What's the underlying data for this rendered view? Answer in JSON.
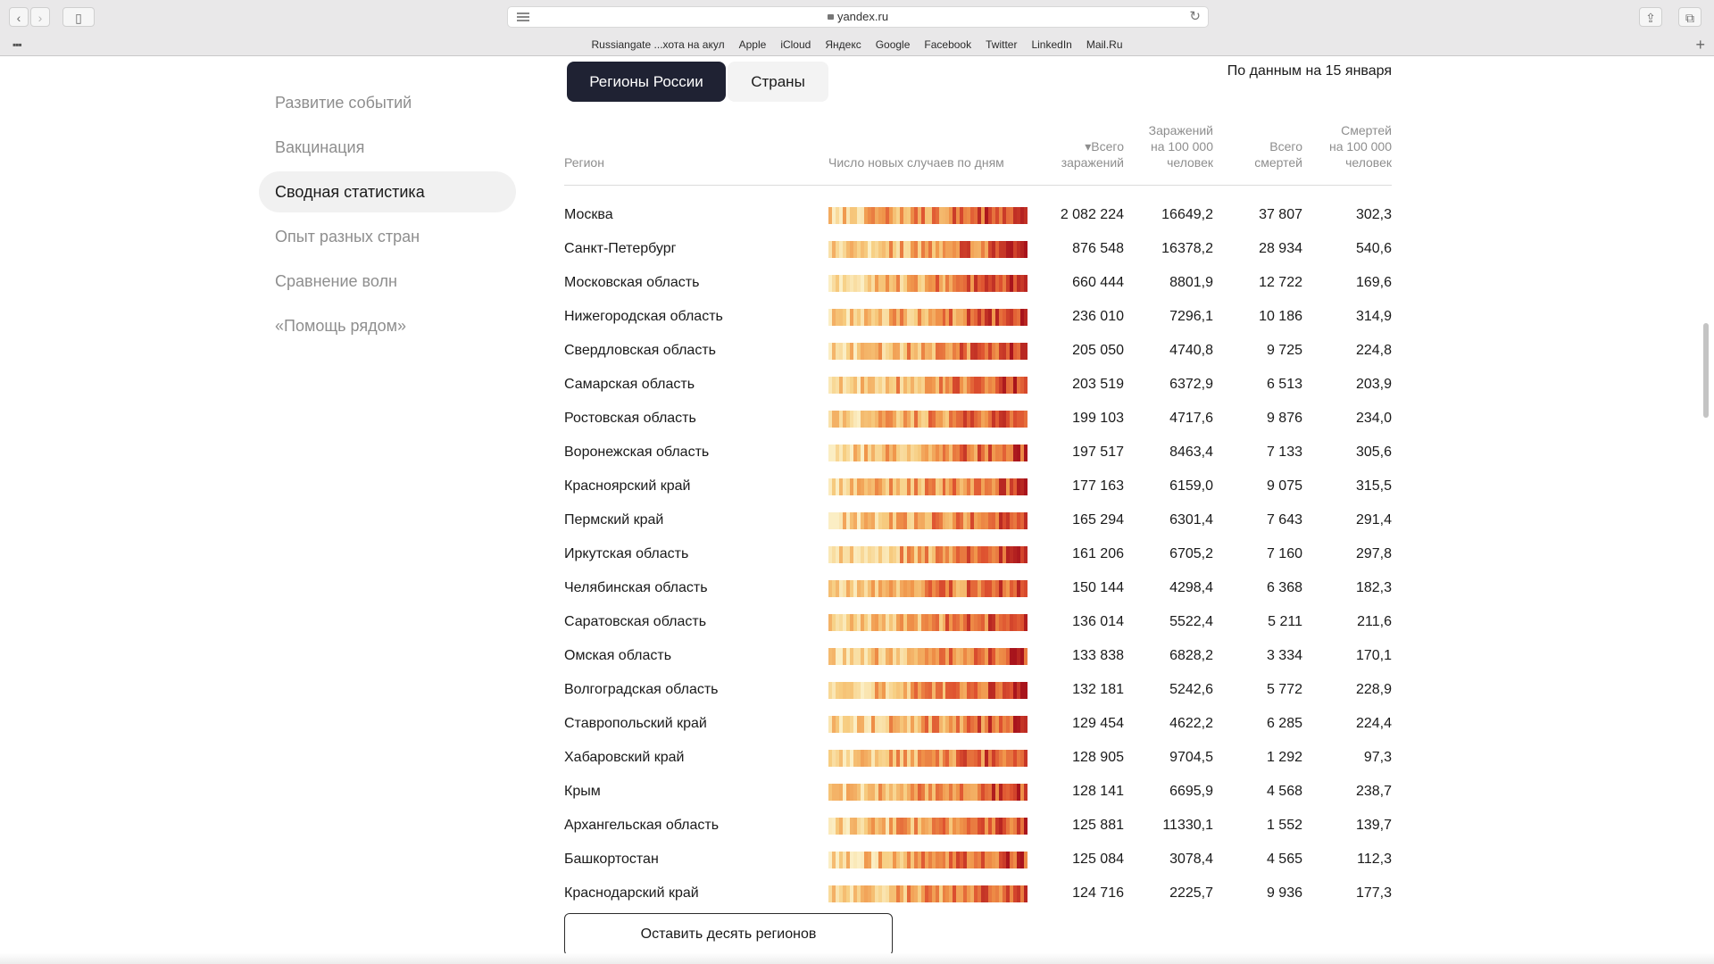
{
  "browser": {
    "url": "yandex.ru",
    "favorites": [
      "Russiangate ...хота на акул",
      "Apple",
      "iCloud",
      "Яндекс",
      "Google",
      "Facebook",
      "Twitter",
      "LinkedIn",
      "Mail.Ru"
    ]
  },
  "sidebar": {
    "items": [
      {
        "label": "Развитие событий",
        "active": false
      },
      {
        "label": "Вакцинация",
        "active": false
      },
      {
        "label": "Сводная статистика",
        "active": true
      },
      {
        "label": "Опыт разных стран",
        "active": false
      },
      {
        "label": "Сравнение волн",
        "active": false
      },
      {
        "label": "«Помощь рядом»",
        "active": false
      }
    ]
  },
  "tabs": {
    "regions": "Регионы России",
    "countries": "Страны"
  },
  "as_of": "По данным на 15 января",
  "table": {
    "headers": {
      "region": "Регион",
      "spark": "Число новых случаев по дням",
      "total_cases": [
        "▾Всего",
        "заражений"
      ],
      "cases_per_100k": [
        "Заражений",
        "на 100 000",
        "человек"
      ],
      "total_deaths": [
        "Всего",
        "смертей"
      ],
      "deaths_per_100k": [
        "Смертей",
        "на 100 000",
        "человек"
      ]
    },
    "rows": [
      {
        "region": "Москва",
        "cases": "2 082 224",
        "cases100k": "16649,2",
        "deaths": "37 807",
        "deaths100k": "302,3"
      },
      {
        "region": "Санкт-Петербург",
        "cases": "876 548",
        "cases100k": "16378,2",
        "deaths": "28 934",
        "deaths100k": "540,6"
      },
      {
        "region": "Московская область",
        "cases": "660 444",
        "cases100k": "8801,9",
        "deaths": "12 722",
        "deaths100k": "169,6"
      },
      {
        "region": "Нижегородская область",
        "cases": "236 010",
        "cases100k": "7296,1",
        "deaths": "10 186",
        "deaths100k": "314,9"
      },
      {
        "region": "Свердловская область",
        "cases": "205 050",
        "cases100k": "4740,8",
        "deaths": "9 725",
        "deaths100k": "224,8"
      },
      {
        "region": "Самарская область",
        "cases": "203 519",
        "cases100k": "6372,9",
        "deaths": "6 513",
        "deaths100k": "203,9"
      },
      {
        "region": "Ростовская область",
        "cases": "199 103",
        "cases100k": "4717,6",
        "deaths": "9 876",
        "deaths100k": "234,0"
      },
      {
        "region": "Воронежская область",
        "cases": "197 517",
        "cases100k": "8463,4",
        "deaths": "7 133",
        "deaths100k": "305,6"
      },
      {
        "region": "Красноярский край",
        "cases": "177 163",
        "cases100k": "6159,0",
        "deaths": "9 075",
        "deaths100k": "315,5"
      },
      {
        "region": "Пермский край",
        "cases": "165 294",
        "cases100k": "6301,4",
        "deaths": "7 643",
        "deaths100k": "291,4"
      },
      {
        "region": "Иркутская область",
        "cases": "161 206",
        "cases100k": "6705,2",
        "deaths": "7 160",
        "deaths100k": "297,8"
      },
      {
        "region": "Челябинская область",
        "cases": "150 144",
        "cases100k": "4298,4",
        "deaths": "6 368",
        "deaths100k": "182,3"
      },
      {
        "region": "Саратовская область",
        "cases": "136 014",
        "cases100k": "5522,4",
        "deaths": "5 211",
        "deaths100k": "211,6"
      },
      {
        "region": "Омская область",
        "cases": "133 838",
        "cases100k": "6828,2",
        "deaths": "3 334",
        "deaths100k": "170,1"
      },
      {
        "region": "Волгоградская область",
        "cases": "132 181",
        "cases100k": "5242,6",
        "deaths": "5 772",
        "deaths100k": "228,9"
      },
      {
        "region": "Ставропольский край",
        "cases": "129 454",
        "cases100k": "4622,2",
        "deaths": "6 285",
        "deaths100k": "224,4"
      },
      {
        "region": "Хабаровский край",
        "cases": "128 905",
        "cases100k": "9704,5",
        "deaths": "1 292",
        "deaths100k": "97,3"
      },
      {
        "region": "Крым",
        "cases": "128 141",
        "cases100k": "6695,9",
        "deaths": "4 568",
        "deaths100k": "238,7"
      },
      {
        "region": "Архангельская область",
        "cases": "125 881",
        "cases100k": "11330,1",
        "deaths": "1 552",
        "deaths100k": "139,7"
      },
      {
        "region": "Башкортостан",
        "cases": "125 084",
        "cases100k": "3078,4",
        "deaths": "4 565",
        "deaths100k": "112,3"
      },
      {
        "region": "Краснодарский край",
        "cases": "124 716",
        "cases100k": "2225,7",
        "deaths": "9 936",
        "deaths100k": "177,3"
      }
    ]
  },
  "more_button": "Оставить десять регионов",
  "colors": {
    "tab_active_bg": "#1f2233",
    "heat_low": "#fbe9b9",
    "heat_mid": "#f2a24e",
    "heat_high": "#a8141c"
  }
}
